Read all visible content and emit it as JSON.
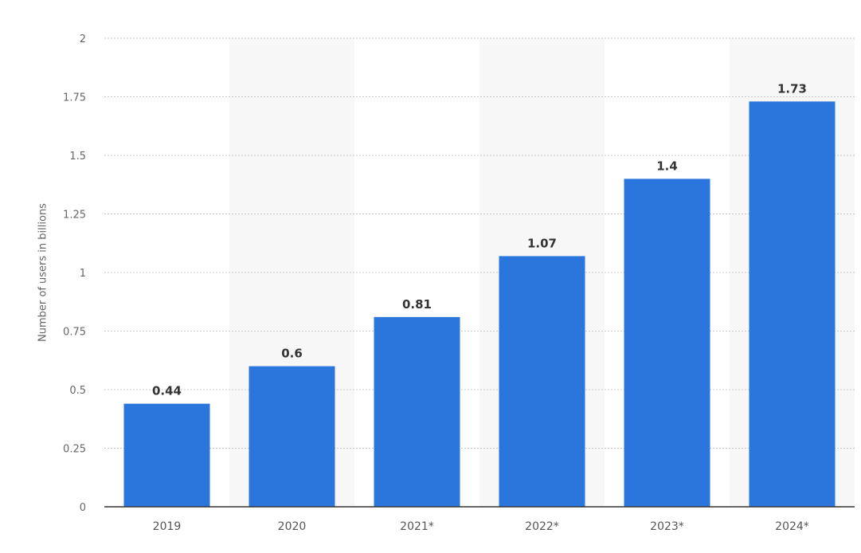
{
  "chart_data": {
    "type": "bar",
    "title": "",
    "xlabel": "",
    "ylabel": "Number of users in billions",
    "categories": [
      "2019",
      "2020",
      "2021*",
      "2022*",
      "2023*",
      "2024*"
    ],
    "values": [
      0.44,
      0.6,
      0.81,
      1.07,
      1.4,
      1.73
    ],
    "value_labels": [
      "0.44",
      "0.6",
      "0.81",
      "1.07",
      "1.4",
      "1.73"
    ],
    "ylim": [
      0,
      2
    ],
    "yticks": [
      "0",
      "0.25",
      "0.5",
      "0.75",
      "1",
      "1.25",
      "1.5",
      "1.75",
      "2"
    ],
    "grid": true,
    "legend": "none",
    "colors": {
      "bar": "#2a76dd",
      "band": "#f7f7f7",
      "grid": "#c8c8c8",
      "axis": "#333333"
    }
  }
}
